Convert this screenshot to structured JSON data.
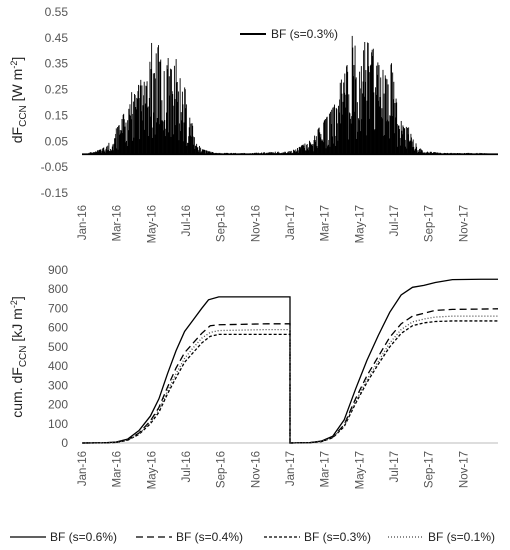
{
  "chart_data": [
    {
      "type": "bar",
      "title": "",
      "ylabel": {
        "main": "dF",
        "sub": "CCN",
        "unit_pre": " [W m",
        "unit_sup": "-2",
        "unit_post": "]"
      },
      "ylim": [
        -0.15,
        0.55
      ],
      "yticks": [
        "0.55",
        "0.45",
        "0.35",
        "0.25",
        "0.15",
        "0.05",
        "-0.05",
        "-0.15"
      ],
      "yticks_values": [
        0.55,
        0.45,
        0.35,
        0.25,
        0.15,
        0.05,
        -0.05,
        -0.15
      ],
      "xticks": [
        "Jan-16",
        "Mar-16",
        "May-16",
        "Jul-16",
        "Sep-16",
        "Nov-16",
        "Jan-17",
        "Mar-17",
        "May-17",
        "Jul-17",
        "Sep-17",
        "Nov-17"
      ],
      "xlim_days": [
        0,
        730
      ],
      "grid": false,
      "legend": "top-right",
      "series": [
        {
          "name": "BF (s=0.3%)",
          "color": "#000000",
          "envelope": [
            {
              "day": 0,
              "value": 0.0
            },
            {
              "day": 20,
              "value": 0.01
            },
            {
              "day": 35,
              "value": 0.02
            },
            {
              "day": 45,
              "value": 0.04
            },
            {
              "day": 55,
              "value": 0.06
            },
            {
              "day": 60,
              "value": 0.1
            },
            {
              "day": 68,
              "value": 0.12
            },
            {
              "day": 73,
              "value": 0.16
            },
            {
              "day": 80,
              "value": 0.17
            },
            {
              "day": 88,
              "value": 0.25
            },
            {
              "day": 95,
              "value": 0.22
            },
            {
              "day": 100,
              "value": 0.28
            },
            {
              "day": 108,
              "value": 0.3
            },
            {
              "day": 113,
              "value": 0.27
            },
            {
              "day": 118,
              "value": 0.33
            },
            {
              "day": 122,
              "value": 0.44
            },
            {
              "day": 128,
              "value": 0.37
            },
            {
              "day": 133,
              "value": 0.42
            },
            {
              "day": 138,
              "value": 0.43
            },
            {
              "day": 143,
              "value": 0.35
            },
            {
              "day": 148,
              "value": 0.33
            },
            {
              "day": 153,
              "value": 0.4
            },
            {
              "day": 158,
              "value": 0.31
            },
            {
              "day": 163,
              "value": 0.38
            },
            {
              "day": 168,
              "value": 0.35
            },
            {
              "day": 173,
              "value": 0.28
            },
            {
              "day": 178,
              "value": 0.29
            },
            {
              "day": 185,
              "value": 0.2
            },
            {
              "day": 193,
              "value": 0.12
            },
            {
              "day": 200,
              "value": 0.05
            },
            {
              "day": 210,
              "value": 0.02
            },
            {
              "day": 225,
              "value": 0.01
            },
            {
              "day": 240,
              "value": 0.005
            },
            {
              "day": 300,
              "value": 0.005
            },
            {
              "day": 340,
              "value": 0.01
            },
            {
              "day": 360,
              "value": 0.01
            },
            {
              "day": 375,
              "value": 0.02
            },
            {
              "day": 390,
              "value": 0.04
            },
            {
              "day": 405,
              "value": 0.06
            },
            {
              "day": 415,
              "value": 0.1
            },
            {
              "day": 425,
              "value": 0.13
            },
            {
              "day": 435,
              "value": 0.16
            },
            {
              "day": 445,
              "value": 0.2
            },
            {
              "day": 452,
              "value": 0.27
            },
            {
              "day": 460,
              "value": 0.32
            },
            {
              "day": 468,
              "value": 0.36
            },
            {
              "day": 473,
              "value": 0.45
            },
            {
              "day": 477,
              "value": 0.48
            },
            {
              "day": 482,
              "value": 0.33
            },
            {
              "day": 487,
              "value": 0.43
            },
            {
              "day": 492,
              "value": 0.41
            },
            {
              "day": 497,
              "value": 0.44
            },
            {
              "day": 502,
              "value": 0.43
            },
            {
              "day": 507,
              "value": 0.4
            },
            {
              "day": 512,
              "value": 0.41
            },
            {
              "day": 517,
              "value": 0.38
            },
            {
              "day": 522,
              "value": 0.39
            },
            {
              "day": 527,
              "value": 0.34
            },
            {
              "day": 532,
              "value": 0.32
            },
            {
              "day": 537,
              "value": 0.27
            },
            {
              "day": 542,
              "value": 0.37
            },
            {
              "day": 547,
              "value": 0.28
            },
            {
              "day": 552,
              "value": 0.2
            },
            {
              "day": 558,
              "value": 0.14
            },
            {
              "day": 565,
              "value": 0.1
            },
            {
              "day": 572,
              "value": 0.11
            },
            {
              "day": 580,
              "value": 0.06
            },
            {
              "day": 590,
              "value": 0.03
            },
            {
              "day": 600,
              "value": 0.01
            },
            {
              "day": 610,
              "value": 0.01
            },
            {
              "day": 630,
              "value": 0.005
            },
            {
              "day": 700,
              "value": 0.005
            },
            {
              "day": 730,
              "value": 0.0
            }
          ]
        }
      ]
    },
    {
      "type": "line",
      "title": "",
      "ylabel": {
        "main": "cum. dF",
        "sub": "CCN",
        "unit_pre": " [kJ m",
        "unit_sup": "-2",
        "unit_post": "]"
      },
      "ylim": [
        0,
        900
      ],
      "yticks": [
        "0",
        "100",
        "200",
        "300",
        "400",
        "500",
        "600",
        "700",
        "800",
        "900"
      ],
      "yticks_values": [
        0,
        100,
        200,
        300,
        400,
        500,
        600,
        700,
        800,
        900
      ],
      "xticks": [
        "Jan-16",
        "Mar-16",
        "May-16",
        "Jul-16",
        "Sep-16",
        "Nov-16",
        "Jan-17",
        "Mar-17",
        "May-17",
        "Jul-17",
        "Sep-17",
        "Nov-17"
      ],
      "xlim_days": [
        0,
        730
      ],
      "grid": false,
      "legend": "bottom",
      "series": [
        {
          "name": "BF (s=0.6%)",
          "style": "solid",
          "points": [
            [
              0,
              0
            ],
            [
              40,
              1
            ],
            [
              60,
              5
            ],
            [
              80,
              20
            ],
            [
              100,
              65
            ],
            [
              120,
              140
            ],
            [
              135,
              230
            ],
            [
              150,
              360
            ],
            [
              165,
              480
            ],
            [
              180,
              580
            ],
            [
              195,
              640
            ],
            [
              210,
              700
            ],
            [
              222,
              745
            ],
            [
              240,
              760
            ],
            [
              325,
              760
            ],
            [
              365,
              760
            ],
            [
              365,
              0
            ],
            [
              400,
              2
            ],
            [
              420,
              10
            ],
            [
              440,
              35
            ],
            [
              460,
              120
            ],
            [
              480,
              280
            ],
            [
              500,
              430
            ],
            [
              520,
              560
            ],
            [
              540,
              680
            ],
            [
              560,
              770
            ],
            [
              580,
              810
            ],
            [
              600,
              820
            ],
            [
              620,
              835
            ],
            [
              650,
              850
            ],
            [
              700,
              852
            ],
            [
              730,
              852
            ]
          ]
        },
        {
          "name": "BF (s=0.4%)",
          "style": "dash",
          "points": [
            [
              0,
              0
            ],
            [
              40,
              1
            ],
            [
              60,
              4
            ],
            [
              80,
              16
            ],
            [
              100,
              52
            ],
            [
              120,
              115
            ],
            [
              135,
              185
            ],
            [
              150,
              290
            ],
            [
              165,
              390
            ],
            [
              180,
              470
            ],
            [
              195,
              520
            ],
            [
              210,
              570
            ],
            [
              225,
              610
            ],
            [
              240,
              615
            ],
            [
              325,
              620
            ],
            [
              365,
              620
            ],
            [
              365,
              0
            ],
            [
              400,
              2
            ],
            [
              420,
              8
            ],
            [
              440,
              30
            ],
            [
              460,
              95
            ],
            [
              480,
              230
            ],
            [
              500,
              350
            ],
            [
              520,
              450
            ],
            [
              540,
              550
            ],
            [
              560,
              620
            ],
            [
              580,
              660
            ],
            [
              600,
              675
            ],
            [
              620,
              690
            ],
            [
              650,
              695
            ],
            [
              730,
              698
            ]
          ]
        },
        {
          "name": "BF (s=0.3%)",
          "style": "shortdash",
          "points": [
            [
              0,
              0
            ],
            [
              40,
              1
            ],
            [
              60,
              3
            ],
            [
              80,
              14
            ],
            [
              100,
              45
            ],
            [
              120,
              100
            ],
            [
              135,
              160
            ],
            [
              150,
              255
            ],
            [
              165,
              340
            ],
            [
              180,
              420
            ],
            [
              195,
              470
            ],
            [
              210,
              520
            ],
            [
              225,
              555
            ],
            [
              240,
              565
            ],
            [
              325,
              565
            ],
            [
              365,
              565
            ],
            [
              365,
              0
            ],
            [
              400,
              2
            ],
            [
              420,
              7
            ],
            [
              440,
              27
            ],
            [
              460,
              85
            ],
            [
              480,
              205
            ],
            [
              500,
              315
            ],
            [
              520,
              410
            ],
            [
              540,
              500
            ],
            [
              560,
              570
            ],
            [
              580,
              610
            ],
            [
              600,
              625
            ],
            [
              620,
              632
            ],
            [
              650,
              635
            ],
            [
              730,
              635
            ]
          ]
        },
        {
          "name": "BF (s=0.1%)",
          "style": "dot",
          "points": [
            [
              0,
              0
            ],
            [
              40,
              1
            ],
            [
              60,
              3
            ],
            [
              80,
              15
            ],
            [
              100,
              48
            ],
            [
              120,
              108
            ],
            [
              135,
              172
            ],
            [
              150,
              270
            ],
            [
              165,
              360
            ],
            [
              180,
              440
            ],
            [
              195,
              495
            ],
            [
              210,
              545
            ],
            [
              225,
              575
            ],
            [
              240,
              585
            ],
            [
              325,
              590
            ],
            [
              365,
              590
            ],
            [
              365,
              0
            ],
            [
              400,
              2
            ],
            [
              420,
              8
            ],
            [
              440,
              29
            ],
            [
              460,
              90
            ],
            [
              480,
              215
            ],
            [
              500,
              330
            ],
            [
              520,
              425
            ],
            [
              540,
              520
            ],
            [
              560,
              590
            ],
            [
              580,
              630
            ],
            [
              600,
              645
            ],
            [
              620,
              655
            ],
            [
              650,
              660
            ],
            [
              730,
              660
            ]
          ]
        }
      ]
    }
  ]
}
